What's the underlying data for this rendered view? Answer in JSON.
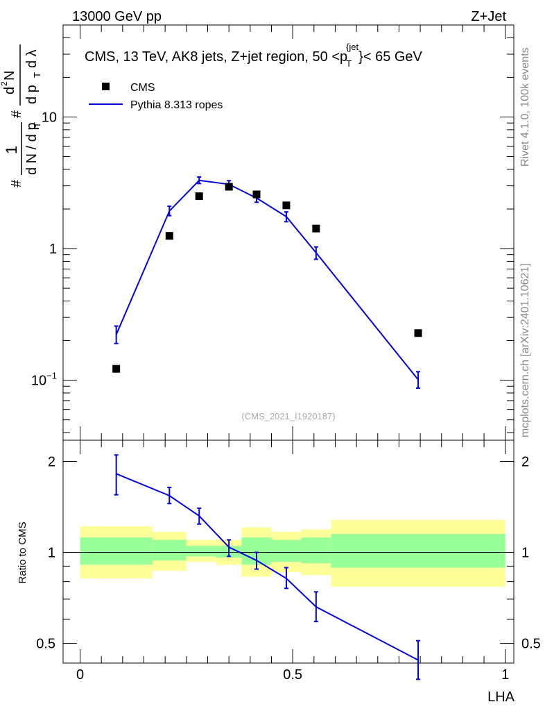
{
  "header": {
    "left": "13000 GeV pp",
    "right": "Z+Jet"
  },
  "side_labels": {
    "rivet": "Rivet 4.1.0,  100k events",
    "mcplots": "mcplots.cern.ch [arXiv:2401.10621]"
  },
  "chart_data": [
    {
      "type": "line",
      "panel": "main",
      "title": "CMS, 13 TeV, AK8 jets, Z+jet region, 50 <p_T^{jet}< 65 GeV",
      "title_parts": {
        "main": "CMS, 13 TeV, AK8 jets, Z+jet region, 50 <p",
        "sub": "T",
        "sup": "{jet",
        "rest": "}< 65 GeV"
      },
      "ylabel": "1/(dN/dp_T) d²N/(dp_T dλ)",
      "ylabel_parts": {
        "hash1": "#",
        "one": "1",
        "dn": "d N / d p",
        "t1": "T",
        "hash2": "#",
        "d2n": "d",
        "two": "2",
        "n": "N",
        "dpt": "d p",
        "t2": "T",
        "dlambda": "d λ"
      },
      "yscale": "log",
      "ylim": [
        0.035,
        50
      ],
      "xlim": [
        -0.04,
        1.02
      ],
      "ytick_labels": [
        "10^{-1}",
        "1",
        "10"
      ],
      "ytick_parts": [
        {
          "base": "10",
          "exp": "−1"
        },
        {
          "base": "1",
          "exp": ""
        },
        {
          "base": "10",
          "exp": ""
        }
      ],
      "watermark": "(CMS_2021_I1920187)",
      "legend": {
        "position": "top-left",
        "entries": [
          "CMS",
          "Pythia 8.313 ropes"
        ]
      },
      "series": [
        {
          "name": "CMS",
          "marker": "square",
          "color": "#000000",
          "x": [
            0.085,
            0.21,
            0.28,
            0.35,
            0.415,
            0.485,
            0.555,
            0.795
          ],
          "values": [
            0.122,
            1.25,
            2.5,
            2.95,
            2.58,
            2.13,
            1.42,
            0.228
          ]
        },
        {
          "name": "Pythia 8.313 ropes",
          "marker": "line",
          "color": "#0000e0",
          "x": [
            0.085,
            0.21,
            0.28,
            0.35,
            0.415,
            0.485,
            0.555,
            0.795
          ],
          "values": [
            0.222,
            1.93,
            3.3,
            3.08,
            2.42,
            1.75,
            0.93,
            0.101
          ],
          "err_lo": [
            0.19,
            1.78,
            3.12,
            2.9,
            2.25,
            1.6,
            0.83,
            0.087
          ],
          "err_hi": [
            0.258,
            2.1,
            3.5,
            3.28,
            2.6,
            1.9,
            1.03,
            0.116
          ]
        }
      ]
    },
    {
      "type": "line",
      "panel": "ratio",
      "ylabel": "Ratio to CMS",
      "xlabel": "LHA",
      "yscale": "log",
      "ylim": [
        0.43,
        2.35
      ],
      "xlim": [
        -0.04,
        1.02
      ],
      "xticks": [
        0,
        0.5,
        1
      ],
      "xtick_labels": [
        "0",
        "0.5",
        "1"
      ],
      "yticks": [
        0.5,
        1,
        2
      ],
      "ytick_labels": [
        "0.5",
        "1",
        "2"
      ],
      "bands": {
        "edges": [
          0,
          0.17,
          0.25,
          0.32,
          0.38,
          0.45,
          0.52,
          0.59,
          1.0
        ],
        "yellow_lo": [
          0.82,
          0.87,
          0.93,
          0.91,
          0.83,
          0.86,
          0.84,
          0.77
        ],
        "yellow_hi": [
          1.22,
          1.17,
          1.1,
          1.1,
          1.21,
          1.17,
          1.19,
          1.28
        ],
        "green_lo": [
          0.91,
          0.94,
          0.97,
          0.96,
          0.91,
          0.93,
          0.92,
          0.89
        ],
        "green_hi": [
          1.12,
          1.1,
          1.05,
          1.05,
          1.12,
          1.1,
          1.12,
          1.15
        ],
        "yellow_color": "#ffff99",
        "green_color": "#99ff99"
      },
      "series": [
        {
          "name": "Pythia 8.313 ropes / CMS",
          "color": "#0000e0",
          "x": [
            0.085,
            0.21,
            0.28,
            0.35,
            0.415,
            0.485,
            0.555,
            0.795
          ],
          "values": [
            1.82,
            1.54,
            1.32,
            1.04,
            0.94,
            0.82,
            0.66,
            0.44
          ],
          "err_lo": [
            1.55,
            1.45,
            1.24,
            0.97,
            0.88,
            0.76,
            0.59,
            0.38
          ],
          "err_hi": [
            2.1,
            1.64,
            1.4,
            1.1,
            1.0,
            0.89,
            0.74,
            0.51
          ]
        }
      ]
    }
  ]
}
